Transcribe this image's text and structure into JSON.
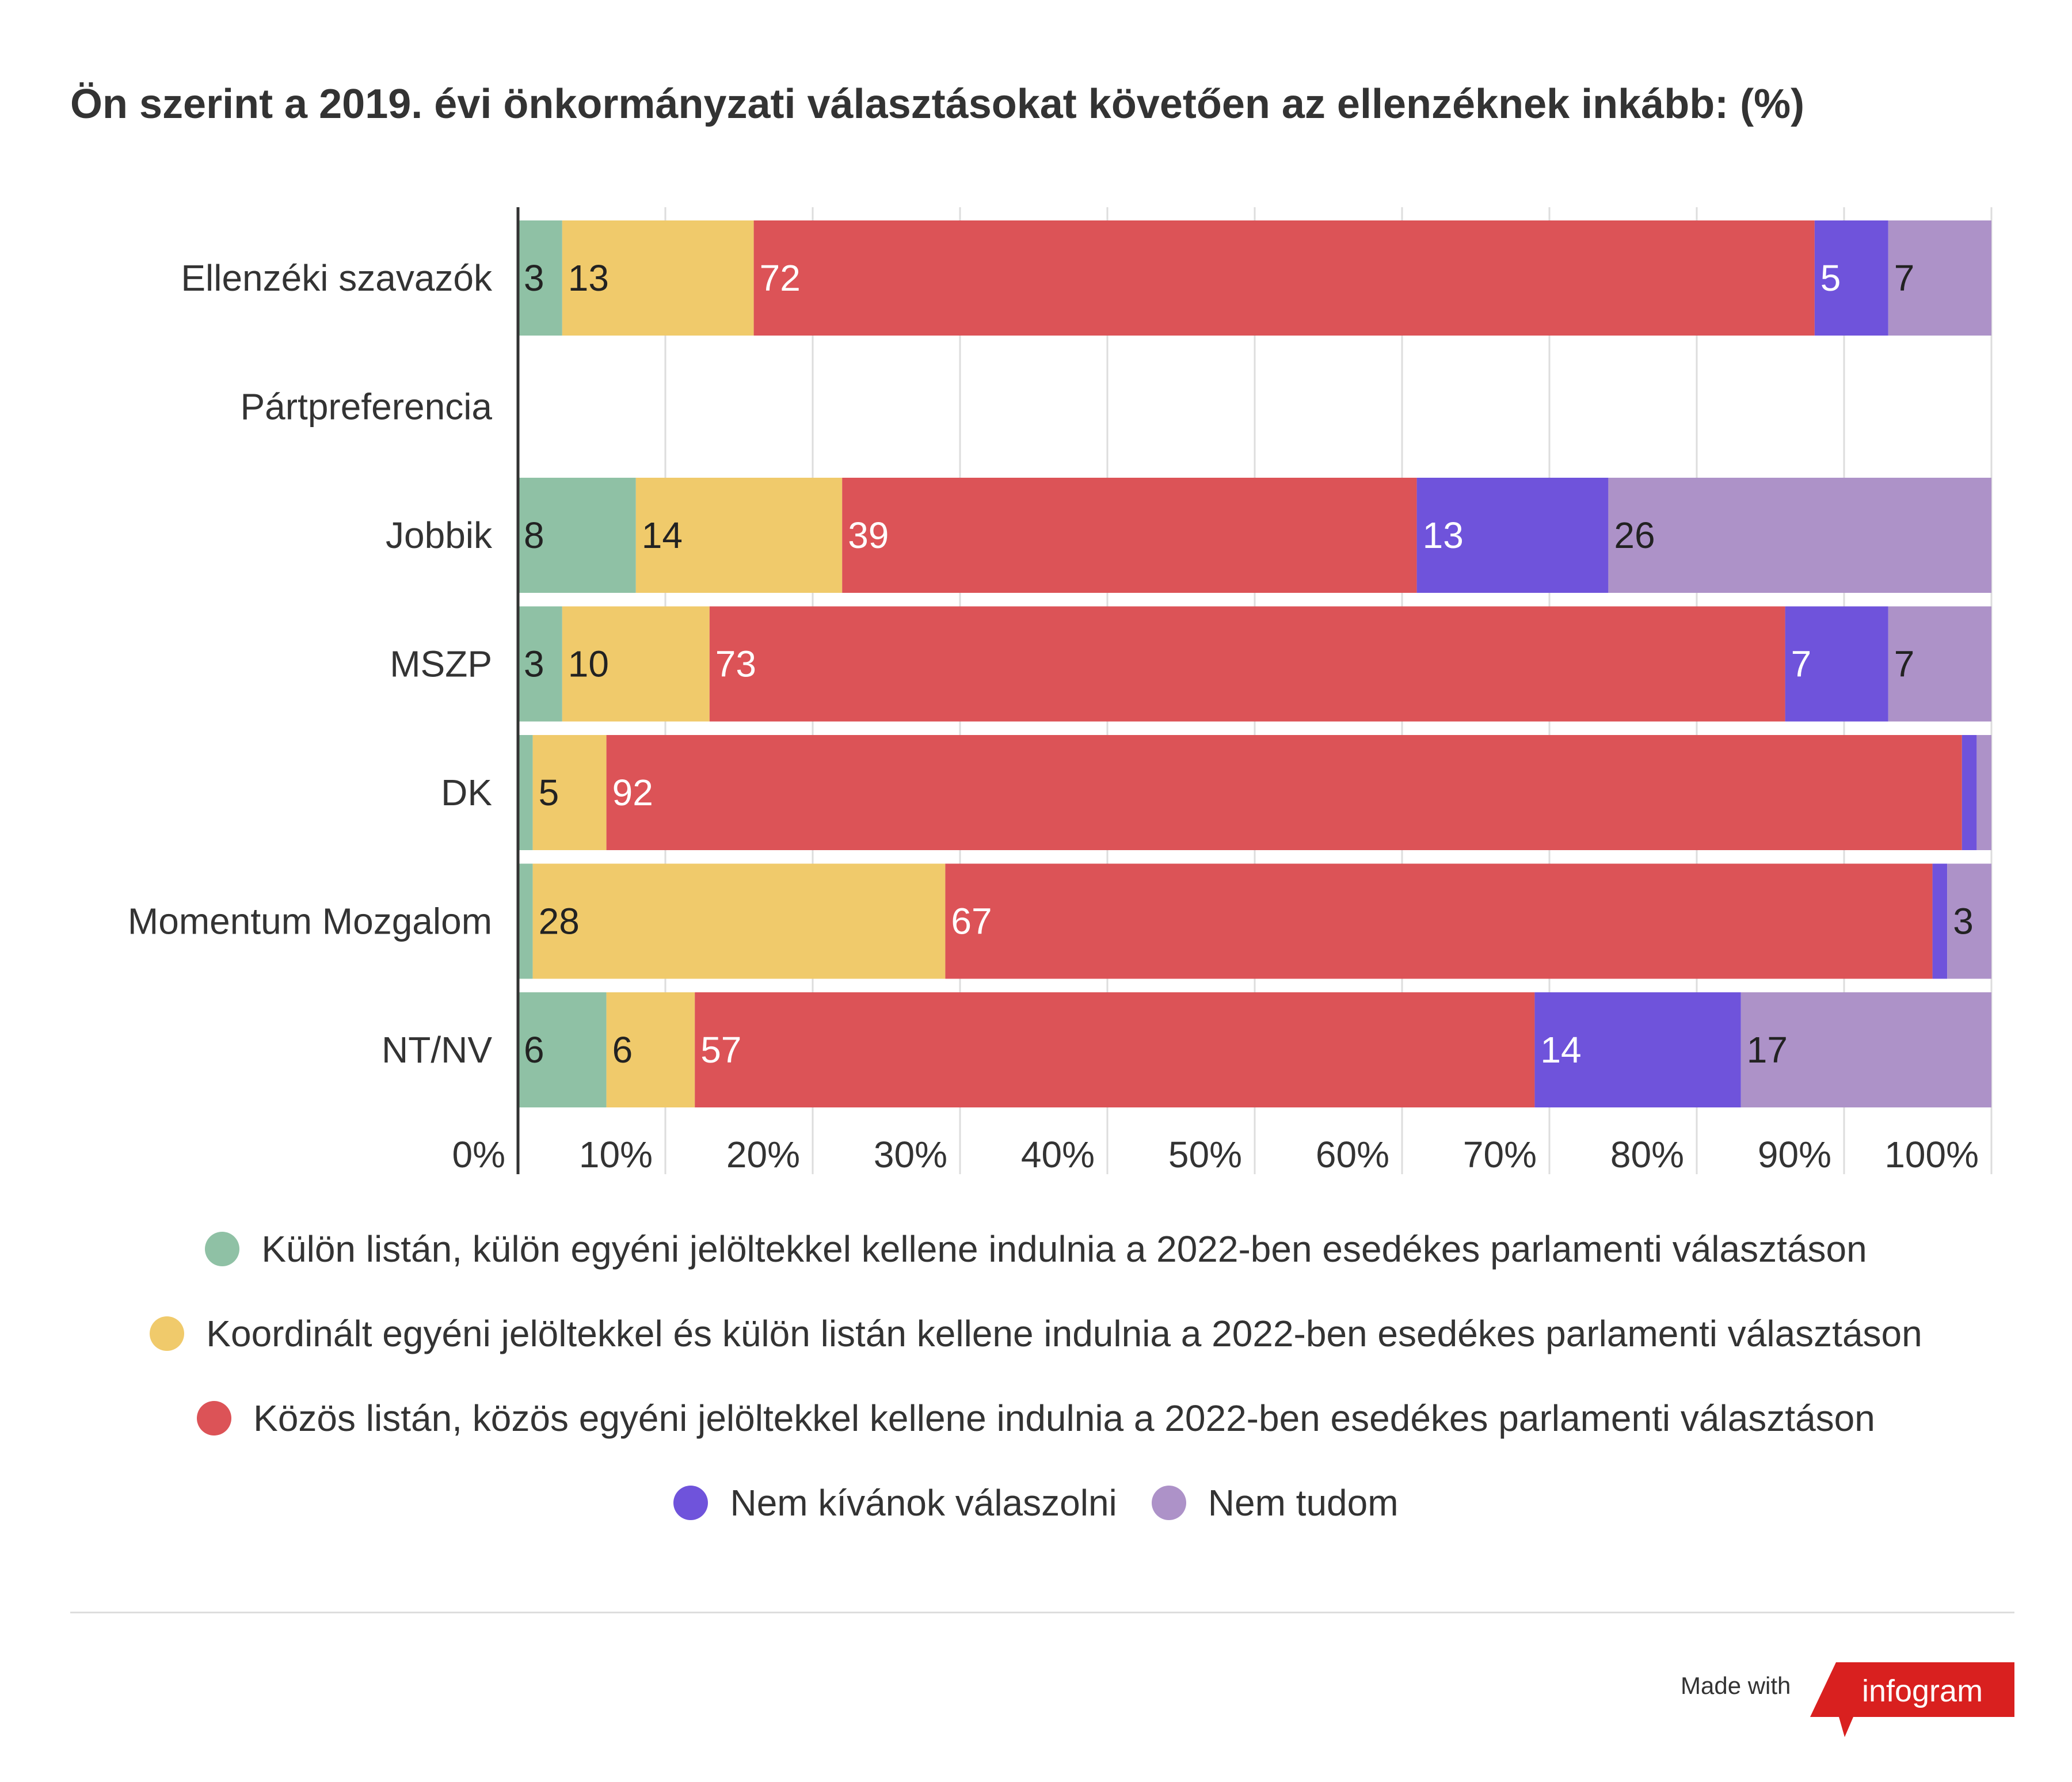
{
  "chart_data": {
    "type": "bar",
    "orientation": "horizontal",
    "stacked": true,
    "title": "Ön szerint a 2019. évi önkormányzati választásokat követően az ellenzéknek inkább: (%)",
    "categories": [
      "Ellenzéki szavazók",
      "Pártpreferencia",
      "Jobbik",
      "MSZP",
      "DK",
      "Momentum Mozgalom",
      "NT/NV"
    ],
    "series": [
      {
        "name": "Külön listán, külön egyéni jelöltekkel kellene indulnia a 2022-ben esedékes parlamenti választáson",
        "color": "#8fc1a5",
        "label_color": "#222222",
        "values": [
          3,
          null,
          8,
          3,
          1,
          1,
          6
        ]
      },
      {
        "name": "Koordinált egyéni jelöltekkel és külön listán kellene indulnia a 2022-ben esedékes parlamenti választáson",
        "color": "#f0ca6b",
        "label_color": "#222222",
        "values": [
          13,
          null,
          14,
          10,
          5,
          28,
          6
        ]
      },
      {
        "name": "Közös listán, közös egyéni jelöltekkel kellene indulnia a 2022-ben esedékes parlamenti választáson",
        "color": "#dc5357",
        "label_color": "#ffffff",
        "values": [
          72,
          null,
          39,
          73,
          92,
          67,
          57
        ]
      },
      {
        "name": "Nem kívánok válaszolni",
        "color": "#6f53db",
        "label_color": "#ffffff",
        "values": [
          5,
          null,
          13,
          7,
          1,
          1,
          14
        ]
      },
      {
        "name": "Nem tudom",
        "color": "#ad92c8",
        "label_color": "#222222",
        "values": [
          7,
          null,
          26,
          7,
          1,
          3,
          17
        ]
      }
    ],
    "data_labels": [
      [
        "3",
        "13",
        "72",
        "5",
        "7"
      ],
      [
        "",
        "",
        "",
        "",
        ""
      ],
      [
        "8",
        "14",
        "39",
        "13",
        "26"
      ],
      [
        "3",
        "10",
        "73",
        "7",
        "7"
      ],
      [
        "",
        "5",
        "92",
        "",
        ""
      ],
      [
        "",
        "28",
        "67",
        "",
        "3"
      ],
      [
        "6",
        "6",
        "57",
        "14",
        "17"
      ]
    ],
    "xlim": [
      0,
      100
    ],
    "x_ticks": [
      "0%",
      "10%",
      "20%",
      "30%",
      "40%",
      "50%",
      "60%",
      "70%",
      "80%",
      "90%",
      "100%"
    ],
    "grid": true,
    "legend_position": "bottom"
  },
  "legend_rows": [
    [
      0
    ],
    [
      1
    ],
    [
      2
    ],
    [
      3,
      4
    ]
  ],
  "footer": {
    "made_with": "Made with",
    "brand": "infogram",
    "brand_color": "#d9201f"
  }
}
